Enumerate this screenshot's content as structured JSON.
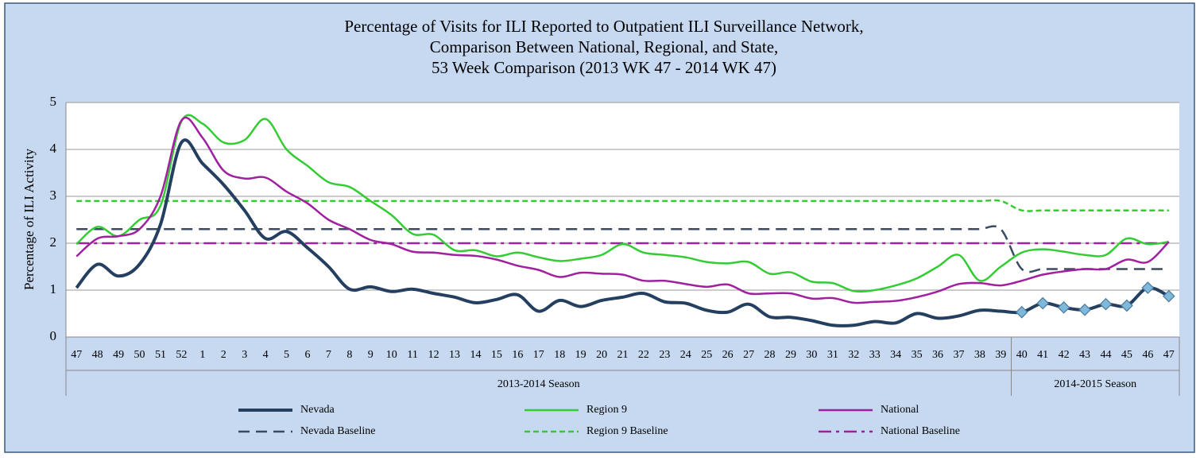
{
  "chart_data": {
    "type": "line",
    "title": [
      "Percentage of Visits for ILI Reported to Outpatient ILI Surveillance Network,",
      "Comparison Between National, Regional, and State,",
      "53 Week Comparison (2013 WK 47 - 2014 WK 47)"
    ],
    "y_label": "Percentage of ILI Activity",
    "categories": [
      "47",
      "48",
      "49",
      "50",
      "51",
      "52",
      "1",
      "2",
      "3",
      "4",
      "5",
      "6",
      "7",
      "8",
      "9",
      "10",
      "11",
      "12",
      "13",
      "14",
      "15",
      "16",
      "17",
      "18",
      "19",
      "20",
      "21",
      "22",
      "23",
      "24",
      "25",
      "26",
      "27",
      "28",
      "29",
      "30",
      "31",
      "32",
      "33",
      "34",
      "35",
      "36",
      "37",
      "38",
      "39",
      "40",
      "41",
      "42",
      "43",
      "44",
      "45",
      "46",
      "47"
    ],
    "groups": [
      {
        "label": "2013-2014 Season",
        "count": 45
      },
      {
        "label": "2014-2015 Season",
        "count": 8
      }
    ],
    "ylim": [
      0,
      5
    ],
    "yticks": [
      0,
      1,
      2,
      3,
      4,
      5
    ],
    "grid": true,
    "smooth": true,
    "legend": "bottom",
    "series": [
      {
        "name": "Nevada",
        "color": "#243f60",
        "dash": "solid",
        "width": 4,
        "markers": {
          "shape": "diamond",
          "color": "#7fb8d8",
          "from_category": "40"
        },
        "values": [
          1.05,
          1.55,
          1.3,
          1.55,
          2.4,
          4.15,
          3.7,
          3.25,
          2.7,
          2.1,
          2.25,
          1.9,
          1.5,
          1.02,
          1.07,
          0.97,
          1.02,
          0.93,
          0.85,
          0.73,
          0.8,
          0.9,
          0.55,
          0.78,
          0.65,
          0.78,
          0.85,
          0.93,
          0.75,
          0.72,
          0.57,
          0.53,
          0.7,
          0.43,
          0.42,
          0.35,
          0.25,
          0.25,
          0.33,
          0.3,
          0.5,
          0.4,
          0.45,
          0.57,
          0.55,
          0.53,
          0.72,
          0.63,
          0.58,
          0.7,
          0.67,
          1.05,
          0.87
        ]
      },
      {
        "name": "Region 9",
        "color": "#33cc33",
        "dash": "solid",
        "width": 2.5,
        "values": [
          1.98,
          2.35,
          2.15,
          2.5,
          2.8,
          4.6,
          4.55,
          4.15,
          4.2,
          4.65,
          4.0,
          3.65,
          3.3,
          3.2,
          2.9,
          2.6,
          2.2,
          2.18,
          1.85,
          1.85,
          1.72,
          1.8,
          1.7,
          1.62,
          1.67,
          1.75,
          1.98,
          1.8,
          1.75,
          1.7,
          1.6,
          1.57,
          1.6,
          1.35,
          1.38,
          1.18,
          1.15,
          0.98,
          1.0,
          1.1,
          1.25,
          1.5,
          1.75,
          1.2,
          1.5,
          1.8,
          1.87,
          1.82,
          1.75,
          1.75,
          2.1,
          1.98,
          2.03
        ]
      },
      {
        "name": "National",
        "color": "#a020a0",
        "dash": "solid",
        "width": 2.5,
        "values": [
          1.72,
          2.1,
          2.15,
          2.3,
          3.0,
          4.62,
          4.25,
          3.55,
          3.38,
          3.4,
          3.1,
          2.85,
          2.5,
          2.3,
          2.07,
          1.98,
          1.82,
          1.8,
          1.75,
          1.73,
          1.65,
          1.52,
          1.43,
          1.28,
          1.37,
          1.35,
          1.33,
          1.2,
          1.2,
          1.13,
          1.07,
          1.12,
          0.93,
          0.93,
          0.93,
          0.82,
          0.83,
          0.73,
          0.75,
          0.77,
          0.85,
          0.97,
          1.13,
          1.15,
          1.1,
          1.2,
          1.33,
          1.4,
          1.45,
          1.45,
          1.65,
          1.6,
          2.03
        ]
      },
      {
        "name": "Nevada Baseline",
        "color": "#3b4a63",
        "dash": "dashed",
        "width": 2.5,
        "values": [
          2.3,
          2.3,
          2.3,
          2.3,
          2.3,
          2.3,
          2.3,
          2.3,
          2.3,
          2.3,
          2.3,
          2.3,
          2.3,
          2.3,
          2.3,
          2.3,
          2.3,
          2.3,
          2.3,
          2.3,
          2.3,
          2.3,
          2.3,
          2.3,
          2.3,
          2.3,
          2.3,
          2.3,
          2.3,
          2.3,
          2.3,
          2.3,
          2.3,
          2.3,
          2.3,
          2.3,
          2.3,
          2.3,
          2.3,
          2.3,
          2.3,
          2.3,
          2.3,
          2.3,
          2.3,
          1.45,
          1.45,
          1.45,
          1.45,
          1.45,
          1.45,
          1.45,
          1.45
        ]
      },
      {
        "name": "Region 9 Baseline",
        "color": "#33cc33",
        "dash": "dotted",
        "width": 2.5,
        "values": [
          2.9,
          2.9,
          2.9,
          2.9,
          2.9,
          2.9,
          2.9,
          2.9,
          2.9,
          2.9,
          2.9,
          2.9,
          2.9,
          2.9,
          2.9,
          2.9,
          2.9,
          2.9,
          2.9,
          2.9,
          2.9,
          2.9,
          2.9,
          2.9,
          2.9,
          2.9,
          2.9,
          2.9,
          2.9,
          2.9,
          2.9,
          2.9,
          2.9,
          2.9,
          2.9,
          2.9,
          2.9,
          2.9,
          2.9,
          2.9,
          2.9,
          2.9,
          2.9,
          2.9,
          2.9,
          2.7,
          2.7,
          2.7,
          2.7,
          2.7,
          2.7,
          2.7,
          2.7
        ]
      },
      {
        "name": "National Baseline",
        "color": "#a020a0",
        "dash": "dashdot",
        "width": 2.5,
        "values": [
          2,
          2,
          2,
          2,
          2,
          2,
          2,
          2,
          2,
          2,
          2,
          2,
          2,
          2,
          2,
          2,
          2,
          2,
          2,
          2,
          2,
          2,
          2,
          2,
          2,
          2,
          2,
          2,
          2,
          2,
          2,
          2,
          2,
          2,
          2,
          2,
          2,
          2,
          2,
          2,
          2,
          2,
          2,
          2,
          2,
          2,
          2,
          2,
          2,
          2,
          2,
          2,
          2
        ]
      }
    ]
  }
}
